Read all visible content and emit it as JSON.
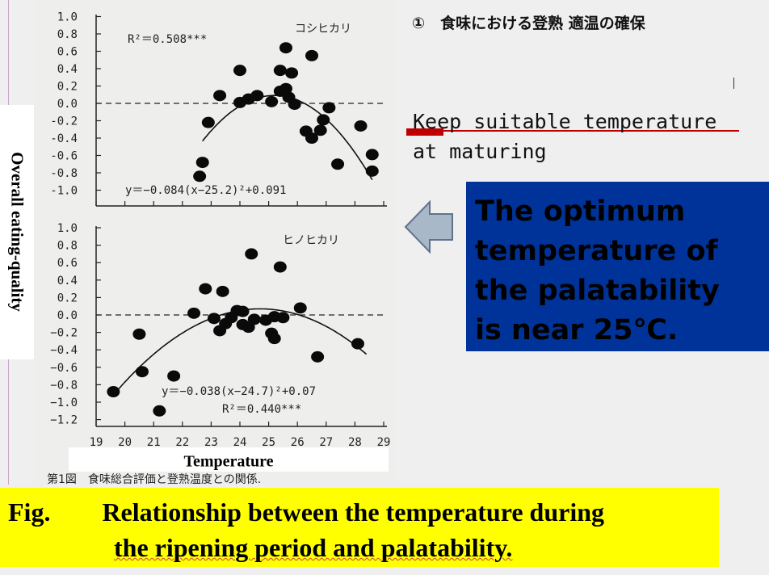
{
  "heading_jp": "①　食味における登熟 適温の確保",
  "keep_text_line1": "Keep suitable temperature",
  "keep_text_line2": "at maturing",
  "blue_box": {
    "line1": "The optimum",
    "line2": "temperature of",
    "line3": "the palatability",
    "line4": "is near 25℃."
  },
  "caption": {
    "label": "Fig.",
    "line1": "Relationship between the temperature during",
    "line2": "the ripening period and palatability."
  },
  "fig_caption_jp": "第1図　食味総合評価と登熟温度との関係.",
  "colors": {
    "blue_box": "#003399",
    "yellow_box": "#ffff00",
    "accent_red": "#c00000",
    "arrow_fill": "#a9b8c8"
  },
  "chart_data": [
    {
      "type": "scatter",
      "title": "コシヒカリ",
      "xlabel": "Temperature",
      "ylabel": "Overall eating-quality",
      "xlim": [
        19,
        29
      ],
      "ylim": [
        -1.0,
        1.0
      ],
      "y_ticks": [
        "1.0",
        "0.8",
        "0.6",
        "0.4",
        "0.2",
        "0.0",
        "-0.2",
        "-0.4",
        "-0.6",
        "-0.8",
        "-1.0"
      ],
      "r2_text": "R²＝0.508***",
      "equation_text": "y＝−0.084(x−25.2)²+0.091",
      "fit": {
        "a": -0.084,
        "h": 25.2,
        "k": 0.091,
        "range": [
          22.7,
          28.6
        ]
      },
      "baseline": 0.0,
      "points": [
        {
          "x": 22.6,
          "y": -0.84
        },
        {
          "x": 22.7,
          "y": -0.68
        },
        {
          "x": 22.9,
          "y": -0.22
        },
        {
          "x": 23.3,
          "y": 0.09
        },
        {
          "x": 24.0,
          "y": 0.38
        },
        {
          "x": 24.0,
          "y": 0.01
        },
        {
          "x": 24.3,
          "y": 0.05
        },
        {
          "x": 24.6,
          "y": 0.09
        },
        {
          "x": 25.1,
          "y": 0.02
        },
        {
          "x": 25.4,
          "y": 0.14
        },
        {
          "x": 25.4,
          "y": 0.38
        },
        {
          "x": 25.6,
          "y": 0.64
        },
        {
          "x": 25.6,
          "y": 0.17
        },
        {
          "x": 25.7,
          "y": 0.07
        },
        {
          "x": 25.8,
          "y": 0.35
        },
        {
          "x": 25.9,
          "y": -0.01
        },
        {
          "x": 26.3,
          "y": -0.32
        },
        {
          "x": 26.5,
          "y": -0.4
        },
        {
          "x": 26.5,
          "y": 0.55
        },
        {
          "x": 26.8,
          "y": -0.31
        },
        {
          "x": 26.9,
          "y": -0.19
        },
        {
          "x": 27.1,
          "y": -0.05
        },
        {
          "x": 27.4,
          "y": -0.7
        },
        {
          "x": 28.2,
          "y": -0.26
        },
        {
          "x": 28.6,
          "y": -0.59
        },
        {
          "x": 28.6,
          "y": -0.78
        }
      ]
    },
    {
      "type": "scatter",
      "title": "ヒノヒカリ",
      "xlabel": "Temperature",
      "ylabel": "Overall eating-quality",
      "xlim": [
        19,
        29
      ],
      "ylim": [
        -1.2,
        1.0
      ],
      "x_ticks": [
        "19",
        "20",
        "21",
        "22",
        "23",
        "24",
        "25",
        "26",
        "27",
        "28",
        "29"
      ],
      "y_ticks": [
        "1.0",
        "0.8",
        "0.6",
        "0.4",
        "0.2",
        "0.0",
        "−0.2",
        "−0.4",
        "−0.6",
        "−0.8",
        "−1.0",
        "−1.2"
      ],
      "r2_text": "R²＝0.440***",
      "equation_text": "y＝−0.038(x−24.7)²+0.07",
      "fit": {
        "a": -0.038,
        "h": 24.7,
        "k": 0.07,
        "range": [
          19.6,
          28.4
        ]
      },
      "baseline": 0.0,
      "points": [
        {
          "x": 19.6,
          "y": -0.88
        },
        {
          "x": 20.5,
          "y": -0.22
        },
        {
          "x": 20.6,
          "y": -0.65
        },
        {
          "x": 21.2,
          "y": -1.1
        },
        {
          "x": 21.7,
          "y": -0.7
        },
        {
          "x": 22.4,
          "y": 0.02
        },
        {
          "x": 22.8,
          "y": 0.3
        },
        {
          "x": 23.1,
          "y": -0.04
        },
        {
          "x": 23.3,
          "y": -0.18
        },
        {
          "x": 23.4,
          "y": 0.27
        },
        {
          "x": 23.5,
          "y": -0.1
        },
        {
          "x": 23.7,
          "y": -0.03
        },
        {
          "x": 23.9,
          "y": 0.05
        },
        {
          "x": 24.1,
          "y": 0.04
        },
        {
          "x": 24.1,
          "y": -0.11
        },
        {
          "x": 24.3,
          "y": -0.14
        },
        {
          "x": 24.4,
          "y": 0.7
        },
        {
          "x": 24.5,
          "y": -0.05
        },
        {
          "x": 24.9,
          "y": -0.06
        },
        {
          "x": 25.1,
          "y": -0.21
        },
        {
          "x": 25.2,
          "y": -0.02
        },
        {
          "x": 25.2,
          "y": -0.27
        },
        {
          "x": 25.4,
          "y": 0.55
        },
        {
          "x": 25.5,
          "y": -0.03
        },
        {
          "x": 26.1,
          "y": 0.08
        },
        {
          "x": 26.7,
          "y": -0.48
        },
        {
          "x": 28.1,
          "y": -0.33
        }
      ]
    }
  ]
}
